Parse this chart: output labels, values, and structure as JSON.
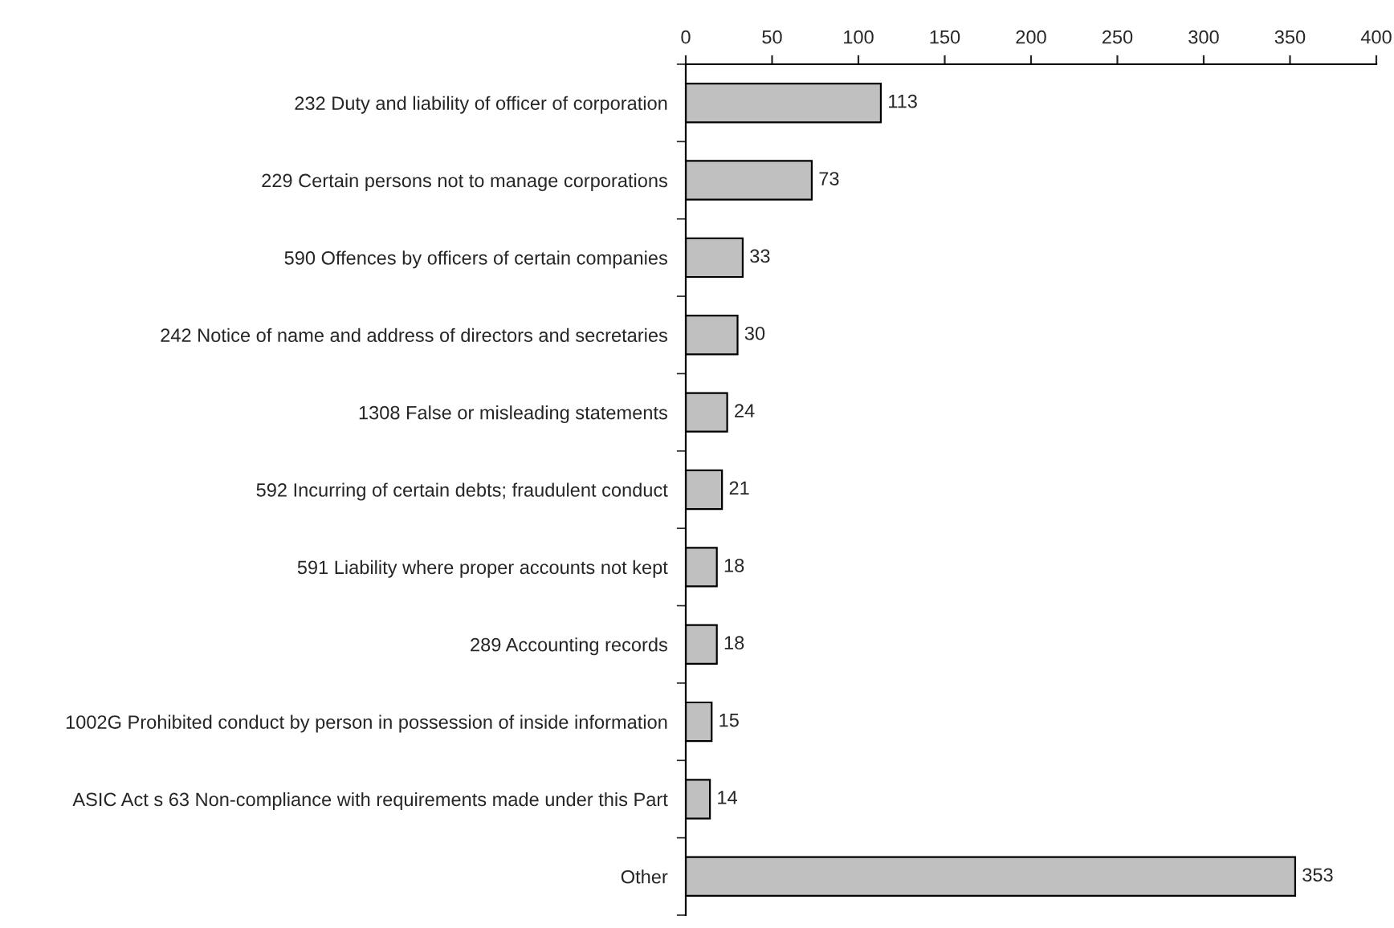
{
  "chart_data": {
    "type": "bar",
    "orientation": "horizontal",
    "categories": [
      "232 Duty and liability of officer of corporation",
      "229 Certain persons not to manage corporations",
      "590 Offences by officers of certain companies",
      "242 Notice of name and address of directors and secretaries",
      "1308 False or misleading statements",
      "592 Incurring of certain debts; fraudulent conduct",
      "591 Liability where proper accounts not kept",
      "289 Accounting records",
      "1002G Prohibited conduct by person in possession of inside information",
      "ASIC Act s 63 Non-compliance with requirements made under this Part",
      "Other"
    ],
    "values": [
      113,
      73,
      33,
      30,
      24,
      21,
      18,
      18,
      15,
      14,
      353
    ],
    "color": "#c0c0c0",
    "xlim": [
      0,
      400
    ],
    "xticks": [
      0,
      50,
      100,
      150,
      200,
      250,
      300,
      350,
      400
    ],
    "data_labels": true,
    "grid": false
  }
}
